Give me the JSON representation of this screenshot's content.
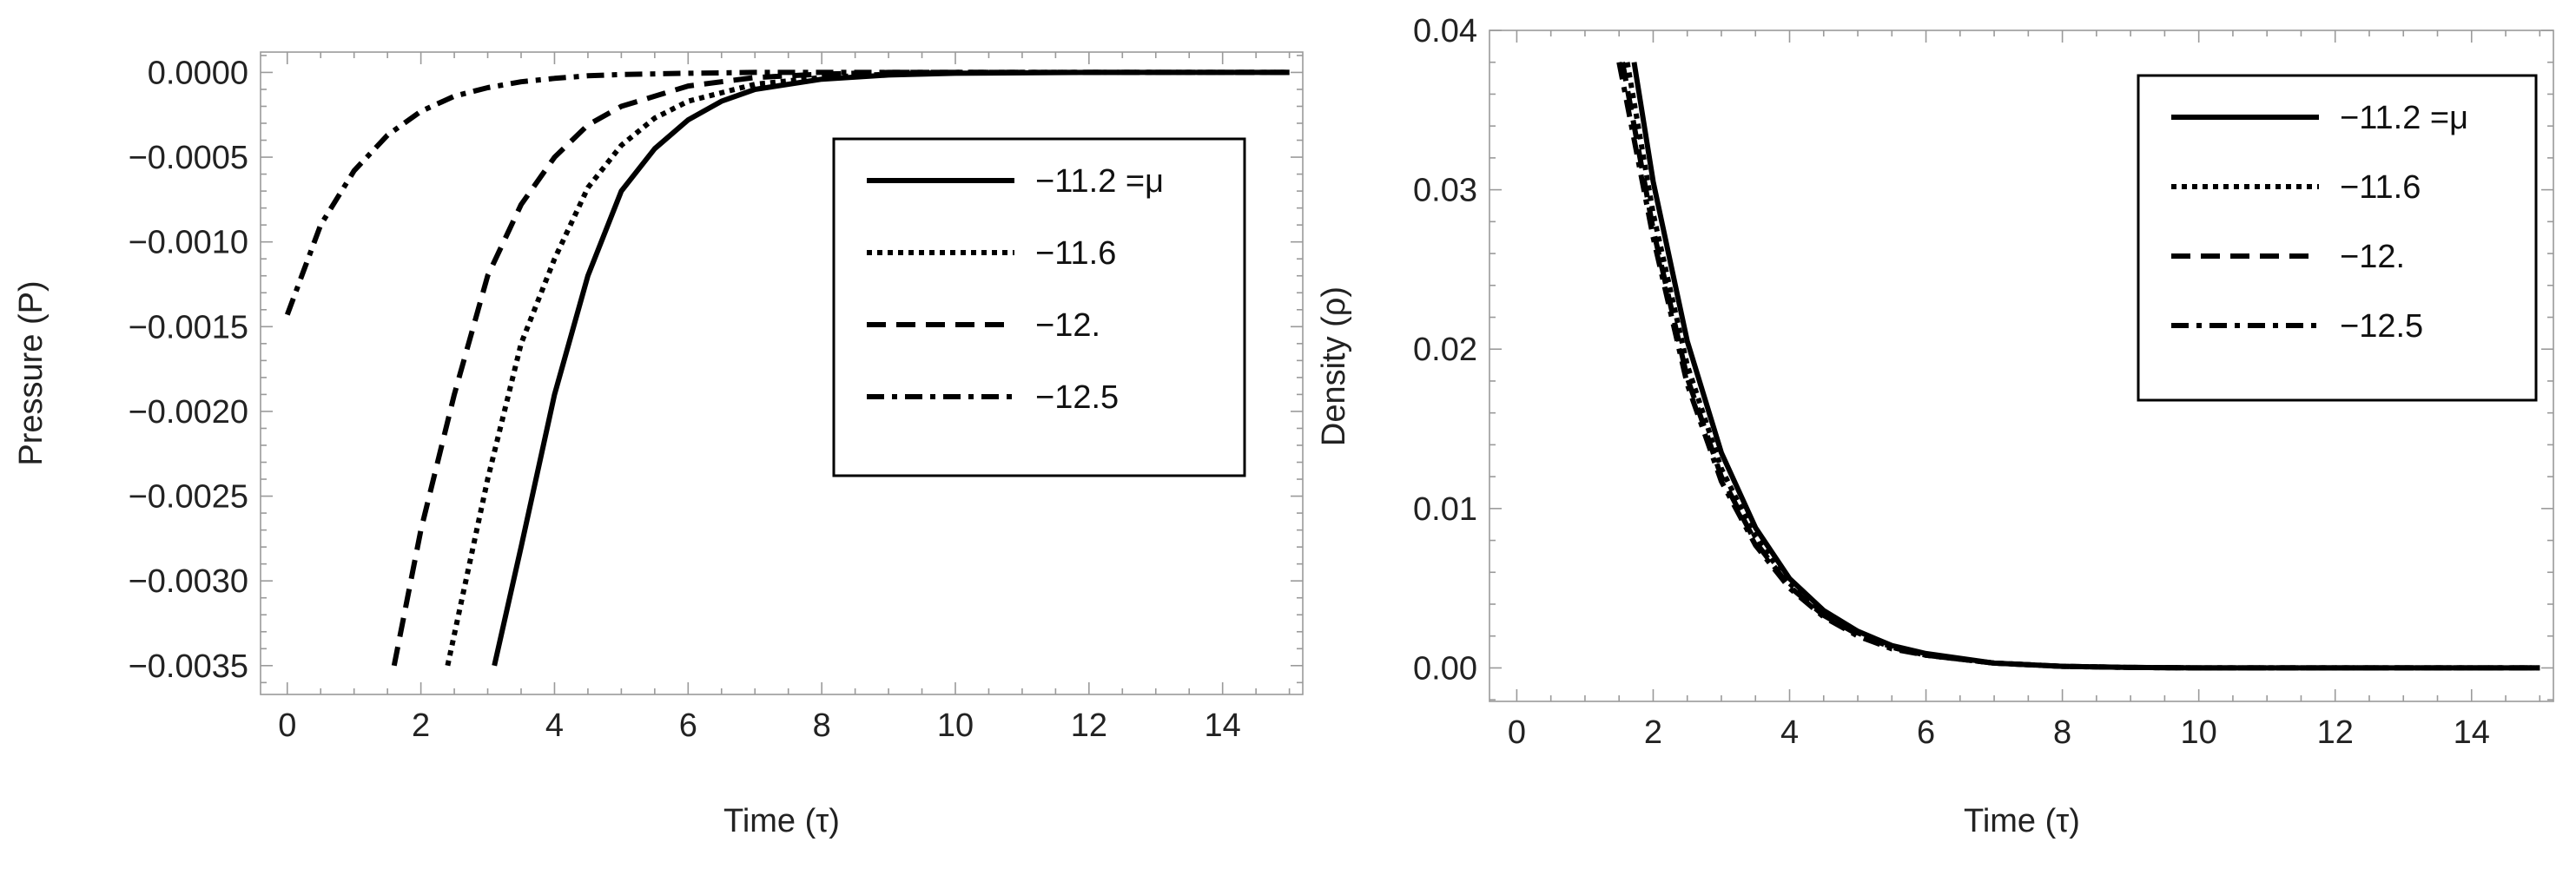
{
  "chart_data": [
    {
      "type": "line",
      "xlabel": "Time (τ)",
      "ylabel": "Pressure (P)",
      "xlim": [
        -0.4,
        15.2
      ],
      "ylim": [
        -0.00367,
        0.00012
      ],
      "xticks": [
        0,
        2,
        4,
        6,
        8,
        10,
        12,
        14
      ],
      "yticks": [
        0.0,
        -0.0005,
        -0.001,
        -0.0015,
        -0.002,
        -0.0025,
        -0.003,
        -0.0035
      ],
      "ytick_labels": [
        "0.0000",
        "−0.0005",
        "−0.0010",
        "−0.0015",
        "−0.0020",
        "−0.0025",
        "−0.0030",
        "−0.0035"
      ],
      "grid": false,
      "legend_position": "right",
      "series": [
        {
          "name": "−11.2 =μ",
          "dash": "solid",
          "x": [
            3.1,
            3.5,
            4,
            4.5,
            5,
            5.5,
            6,
            6.5,
            7,
            8,
            9,
            10,
            12,
            15
          ],
          "y": [
            -0.0035,
            -0.0028,
            -0.0019,
            -0.0012,
            -0.0007,
            -0.00045,
            -0.00028,
            -0.00017,
            -0.0001,
            -4e-05,
            -1.5e-05,
            -5e-06,
            0.0,
            0.0
          ]
        },
        {
          "name": "−11.6",
          "dash": "dotted",
          "x": [
            2.4,
            3,
            3.5,
            4,
            4.5,
            5,
            5.5,
            6,
            7,
            8,
            9,
            10,
            12,
            15
          ],
          "y": [
            -0.0035,
            -0.0024,
            -0.0016,
            -0.0011,
            -0.00068,
            -0.00043,
            -0.00027,
            -0.00017,
            -7e-05,
            -3e-05,
            -1e-05,
            0.0,
            0.0,
            0.0
          ]
        },
        {
          "name": "−12.",
          "dash": "dashed",
          "x": [
            1.6,
            2,
            2.5,
            3,
            3.5,
            4,
            4.5,
            5,
            6,
            7,
            8,
            9,
            10,
            15
          ],
          "y": [
            -0.0035,
            -0.0027,
            -0.0019,
            -0.0012,
            -0.00078,
            -0.0005,
            -0.00031,
            -0.0002,
            -8e-05,
            -3e-05,
            -1e-05,
            0.0,
            0.0,
            0.0
          ]
        },
        {
          "name": "−12.5",
          "dash": "dashdot",
          "x": [
            0,
            0.5,
            1,
            1.5,
            2,
            2.5,
            3,
            3.5,
            4,
            4.5,
            5,
            6,
            7,
            8,
            10,
            15
          ],
          "y": [
            -0.00143,
            -0.0009,
            -0.00058,
            -0.00037,
            -0.00023,
            -0.00014,
            -9e-05,
            -5.5e-05,
            -3.5e-05,
            -2e-05,
            -1.2e-05,
            -5e-06,
            0.0,
            0.0,
            0.0,
            0.0
          ]
        }
      ]
    },
    {
      "type": "line",
      "xlabel": "Time (τ)",
      "ylabel": "Density (ρ)",
      "xlim": [
        -0.4,
        15.2
      ],
      "ylim": [
        -0.0021,
        0.04
      ],
      "xticks": [
        0,
        2,
        4,
        6,
        8,
        10,
        12,
        14
      ],
      "yticks": [
        0.0,
        0.01,
        0.02,
        0.03,
        0.04
      ],
      "ytick_labels": [
        "0.00",
        "0.01",
        "0.02",
        "0.03",
        "0.04"
      ],
      "grid": false,
      "legend_position": "top-right",
      "series": [
        {
          "name": "−11.2 =μ",
          "dash": "solid",
          "x": [
            1.72,
            2,
            2.5,
            3,
            3.5,
            4,
            4.5,
            5,
            5.5,
            6,
            7,
            8,
            9,
            10,
            12,
            15
          ],
          "y": [
            0.038,
            0.0305,
            0.0205,
            0.0135,
            0.0088,
            0.0056,
            0.0036,
            0.0023,
            0.0014,
            0.0009,
            0.0003,
            0.0001,
            3e-05,
            0.0,
            0.0,
            0.0
          ]
        },
        {
          "name": "−11.6",
          "dash": "dotted",
          "x": [
            1.62,
            2,
            2.5,
            3,
            3.5,
            4,
            4.5,
            5,
            5.5,
            6,
            7,
            8,
            9,
            10,
            12,
            15
          ],
          "y": [
            0.038,
            0.0285,
            0.019,
            0.0125,
            0.0082,
            0.0053,
            0.0034,
            0.0022,
            0.0013,
            0.0008,
            0.0003,
            0.0001,
            3e-05,
            0.0,
            0.0,
            0.0
          ]
        },
        {
          "name": "−12.",
          "dash": "dashed",
          "x": [
            1.55,
            2,
            2.5,
            3,
            3.5,
            4,
            4.5,
            5,
            5.5,
            6,
            7,
            8,
            9,
            10,
            12,
            15
          ],
          "y": [
            0.038,
            0.0275,
            0.0182,
            0.012,
            0.0079,
            0.0051,
            0.0033,
            0.0021,
            0.0013,
            0.0008,
            0.0003,
            0.0001,
            3e-05,
            0.0,
            0.0,
            0.0
          ]
        },
        {
          "name": "−12.5",
          "dash": "dashdot",
          "x": [
            1.5,
            2,
            2.5,
            3,
            3.5,
            4,
            4.5,
            5,
            5.5,
            6,
            7,
            8,
            9,
            10,
            12,
            15
          ],
          "y": [
            0.038,
            0.027,
            0.0178,
            0.0117,
            0.0077,
            0.005,
            0.0032,
            0.002,
            0.0012,
            0.0008,
            0.0003,
            0.0001,
            3e-05,
            0.0,
            0.0,
            0.0
          ]
        }
      ]
    }
  ]
}
